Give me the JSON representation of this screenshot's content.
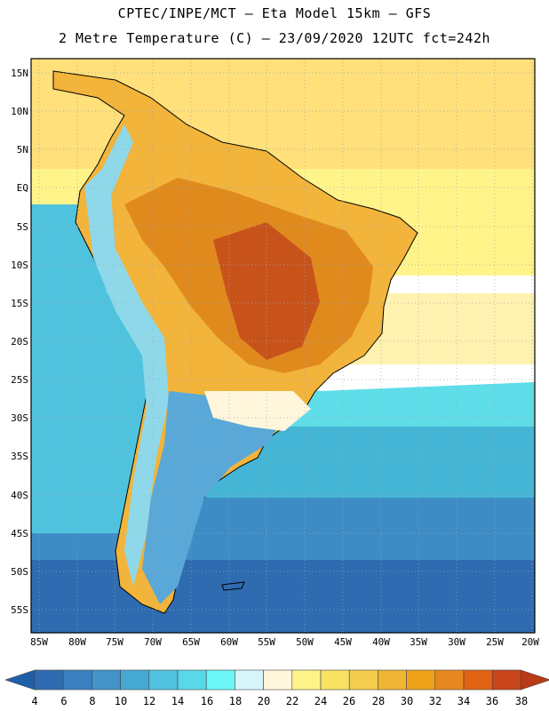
{
  "header": {
    "line1": "CPTEC/INPE/MCT –  Eta Model 15km – GFS",
    "line2": "2 Metre Temperature (C) – 23/09/2020 12UTC fct=242h"
  },
  "map": {
    "lat_ticks": [
      "15N",
      "10N",
      "5N",
      "EQ",
      "5S",
      "10S",
      "15S",
      "20S",
      "25S",
      "30S",
      "35S",
      "40S",
      "45S",
      "50S",
      "55S"
    ],
    "lon_ticks": [
      "85W",
      "80W",
      "75W",
      "70W",
      "65W",
      "60W",
      "55W",
      "50W",
      "45W",
      "40W",
      "35W",
      "30W",
      "25W",
      "20W"
    ],
    "colors": {
      "ocean_cold": "#2e6bb0",
      "ocean_mid": "#3d8cc6",
      "ocean_cool": "#45b5d6",
      "ocean_warm": "#5fdde8",
      "ocean_tropic": "#ffe07a",
      "land_hot": "#e08a1e",
      "land_very_hot": "#c8531a"
    }
  },
  "colorbar": {
    "labels": [
      "4",
      "6",
      "8",
      "10",
      "12",
      "14",
      "16",
      "18",
      "20",
      "22",
      "24",
      "26",
      "28",
      "30",
      "32",
      "34",
      "36",
      "38"
    ],
    "colors": [
      "#1f5fa8",
      "#2e6bb0",
      "#3a7fbf",
      "#4393c9",
      "#46a9d3",
      "#4fc3de",
      "#58d8e8",
      "#6bf5f5",
      "#d6f5fb",
      "#fff6dc",
      "#fff48a",
      "#f8e163",
      "#f3cd4e",
      "#efb534",
      "#eea21a",
      "#e8881f",
      "#e06414",
      "#c8451a",
      "#b83a16"
    ]
  }
}
